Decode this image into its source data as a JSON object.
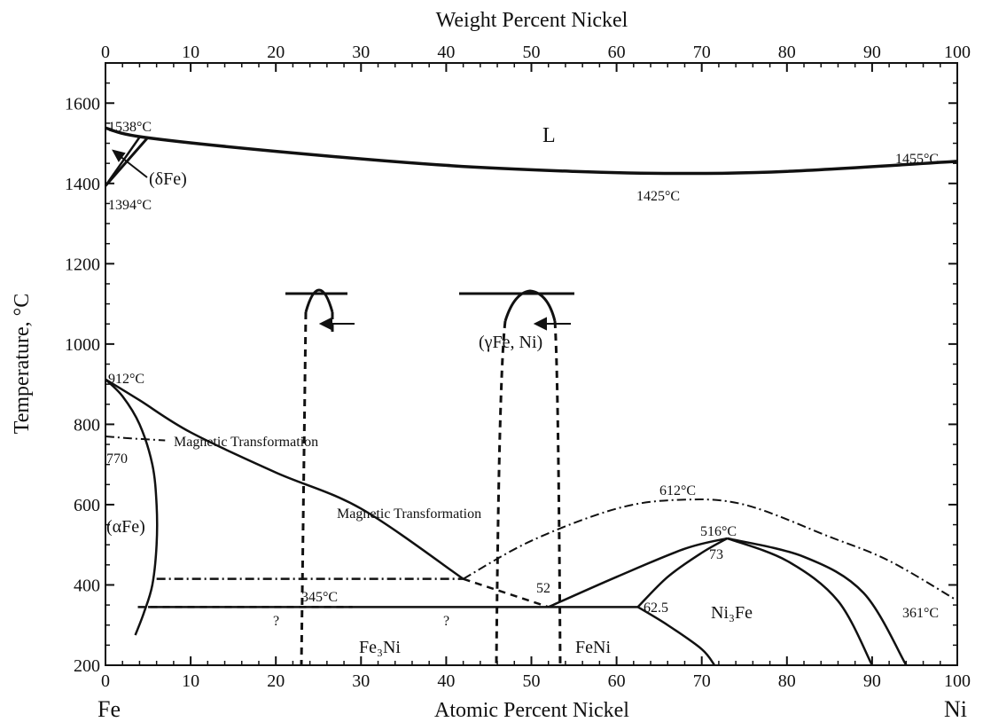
{
  "axes": {
    "top_title": "Weight Percent Nickel",
    "bottom_title": "Atomic Percent Nickel",
    "left_title": "Temperature, °C",
    "left_element": "Fe",
    "right_element": "Ni",
    "x_ticks": [
      "0",
      "10",
      "20",
      "30",
      "40",
      "50",
      "60",
      "70",
      "80",
      "90",
      "100"
    ],
    "y_ticks": [
      "200",
      "400",
      "600",
      "800",
      "1000",
      "1200",
      "1400",
      "1600"
    ]
  },
  "chart_data": {
    "type": "phase-diagram",
    "x_range": [
      0,
      100
    ],
    "y_range": [
      200,
      1700
    ],
    "liquidus": [
      [
        0,
        1538
      ],
      [
        4.5,
        1515
      ],
      [
        20,
        1480
      ],
      [
        40,
        1445
      ],
      [
        55,
        1430
      ],
      [
        67,
        1425
      ],
      [
        80,
        1430
      ],
      [
        100,
        1455
      ]
    ],
    "delta_solidus": [
      [
        0,
        1394
      ],
      [
        5,
        1515
      ]
    ],
    "delta_inner": [
      [
        0,
        1394
      ],
      [
        4,
        1515
      ]
    ],
    "gamma_alpha_upper": [
      [
        0,
        912
      ],
      [
        4,
        860
      ],
      [
        10,
        780
      ],
      [
        20,
        680
      ],
      [
        30,
        590
      ],
      [
        42,
        415
      ]
    ],
    "gamma_alpha_lower": [
      [
        0,
        912
      ],
      [
        2,
        870
      ],
      [
        4,
        800
      ],
      [
        5.5,
        700
      ],
      [
        6,
        600
      ],
      [
        6,
        500
      ],
      [
        5.5,
        400
      ],
      [
        4.5,
        330
      ],
      [
        3.5,
        275
      ]
    ],
    "magnetic_left": [
      [
        0,
        770
      ],
      [
        3,
        765
      ],
      [
        7,
        760
      ]
    ],
    "magnetic_right": [
      [
        42,
        415
      ],
      [
        50,
        510
      ],
      [
        60,
        590
      ],
      [
        67.5,
        612
      ],
      [
        75,
        600
      ],
      [
        85,
        520
      ],
      [
        92,
        460
      ],
      [
        100,
        361
      ]
    ],
    "eutectoid_345": [
      [
        5,
        345
      ],
      [
        62.5,
        345
      ]
    ],
    "dashed_415": [
      [
        6,
        415
      ],
      [
        42,
        415
      ]
    ],
    "dashed_420_to_52": [
      [
        42,
        415
      ],
      [
        52,
        345
      ]
    ],
    "ni3fe_left": [
      [
        52,
        345
      ],
      [
        60,
        420
      ],
      [
        68,
        490
      ],
      [
        73,
        516
      ]
    ],
    "ni3fe_left_lower": [
      [
        62.5,
        345
      ],
      [
        66,
        420
      ],
      [
        70,
        480
      ],
      [
        73,
        516
      ]
    ],
    "ni3fe_right_inner": [
      [
        73,
        516
      ],
      [
        80,
        460
      ],
      [
        86,
        360
      ],
      [
        90,
        200
      ]
    ],
    "ni3fe_right_outer": [
      [
        73,
        516
      ],
      [
        82,
        470
      ],
      [
        89,
        380
      ],
      [
        94,
        200
      ]
    ],
    "ni3fe_low_branch": [
      [
        62.5,
        345
      ],
      [
        66,
        300
      ],
      [
        70,
        240
      ],
      [
        71.5,
        200
      ]
    ],
    "labels": {
      "L": "L",
      "delta": "(δFe)",
      "gamma": "(γFe, Ni)",
      "alpha": "(αFe)",
      "ni3fe": "Ni₃Fe",
      "fe3ni": "Fe₃Ni",
      "feni": "FeNi",
      "t1538": "1538°C",
      "t1394": "1394°C",
      "t1425": "1425°C",
      "t1455": "1455°C",
      "t912": "912°C",
      "t770": "770",
      "t612": "612°C",
      "t516": "516°C",
      "t345": "345°C",
      "t361": "361°C",
      "v73": "73",
      "v52": "52",
      "v625": "62.5",
      "q1": "?",
      "q2": "?",
      "mag1": "Magnetic Transformation",
      "mag2": "Magnetic Transformation"
    }
  }
}
